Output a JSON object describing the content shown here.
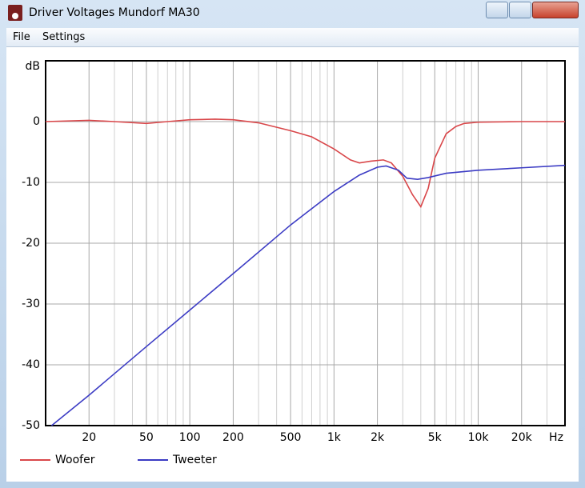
{
  "window": {
    "title": "Driver Voltages Mundorf MA30"
  },
  "menu": [
    "File",
    "Settings"
  ],
  "chart_data": {
    "type": "line",
    "y_label": "dB",
    "x_label": "Hz",
    "log_x": true,
    "grid": true,
    "legend": "bottom",
    "xlim": [
      10,
      40000
    ],
    "ylim": [
      -50,
      10
    ],
    "yticks": [
      0,
      -10,
      -20,
      -30,
      -40,
      -50
    ],
    "xticks": [
      20,
      50,
      100,
      200,
      500,
      {
        "value": 1000,
        "label": "1k"
      },
      {
        "value": 2000,
        "label": "2k"
      },
      {
        "value": 5000,
        "label": "5k"
      },
      {
        "value": 10000,
        "label": "10k"
      },
      {
        "value": 20000,
        "label": "20k"
      }
    ],
    "x_minor_grid": [
      30,
      40,
      60,
      70,
      80,
      90,
      300,
      400,
      600,
      700,
      800,
      900,
      3000,
      4000,
      6000,
      7000,
      8000,
      9000,
      30000
    ],
    "series": [
      {
        "name": "Woofer",
        "color": "#d9474a",
        "x": [
          10,
          20,
          30,
          50,
          70,
          100,
          150,
          200,
          300,
          500,
          700,
          1000,
          1300,
          1500,
          1800,
          2200,
          2500,
          3000,
          3500,
          4000,
          4500,
          5000,
          6000,
          7000,
          8000,
          10000,
          20000,
          40000
        ],
        "values": [
          0,
          0.2,
          0,
          -0.3,
          0,
          0.3,
          0.4,
          0.3,
          -0.2,
          -1.5,
          -2.5,
          -4.5,
          -6.3,
          -6.8,
          -6.5,
          -6.3,
          -6.8,
          -9,
          -12,
          -14,
          -11,
          -6,
          -2,
          -0.8,
          -0.3,
          -0.1,
          0,
          0
        ]
      },
      {
        "name": "Tweeter",
        "color": "#3c3cc4",
        "x": [
          11,
          20,
          50,
          100,
          200,
          500,
          1000,
          1500,
          2000,
          2300,
          2800,
          3200,
          3800,
          4500,
          6000,
          10000,
          20000,
          40000
        ],
        "values": [
          -50,
          -45,
          -37,
          -31,
          -25,
          -17,
          -11.5,
          -8.8,
          -7.5,
          -7.3,
          -8,
          -9.3,
          -9.5,
          -9.2,
          -8.5,
          -8,
          -7.6,
          -7.2
        ]
      }
    ]
  }
}
